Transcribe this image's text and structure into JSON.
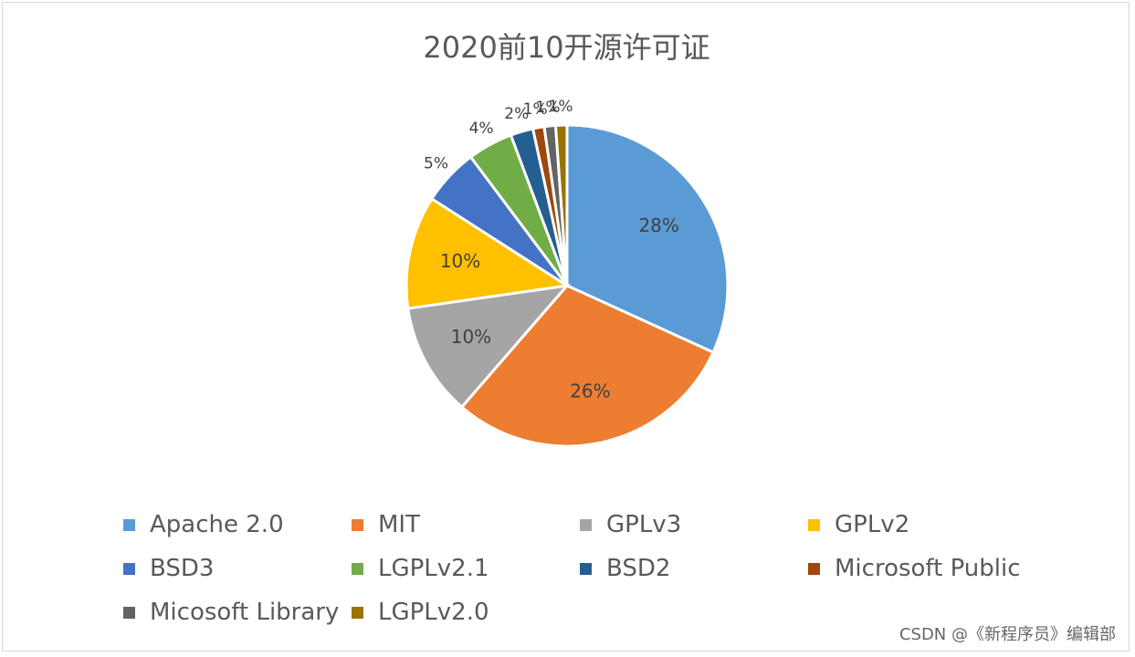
{
  "chart_data": {
    "type": "pie",
    "title": "2020前10开源许可证",
    "slices": [
      {
        "label": "Apache 2.0",
        "value": 28,
        "display": "28%",
        "color": "#5b9bd5"
      },
      {
        "label": "MIT",
        "value": 26,
        "display": "26%",
        "color": "#ed7d31"
      },
      {
        "label": "GPLv3",
        "value": 10,
        "display": "10%",
        "color": "#a5a5a5"
      },
      {
        "label": "GPLv2",
        "value": 10,
        "display": "10%",
        "color": "#ffc000"
      },
      {
        "label": "BSD3",
        "value": 5,
        "display": "5%",
        "color": "#4472c4"
      },
      {
        "label": "LGPLv2.1",
        "value": 4,
        "display": "4%",
        "color": "#70ad47"
      },
      {
        "label": "BSD2",
        "value": 2,
        "display": "2%",
        "color": "#255e91"
      },
      {
        "label": "Microsoft Public",
        "value": 1,
        "display": "1%",
        "color": "#9e480e"
      },
      {
        "label": "Micosoft Library",
        "value": 1,
        "display": "1%",
        "color": "#636363"
      },
      {
        "label": "LGPLv2.0",
        "value": 1,
        "display": "1%",
        "color": "#997300"
      }
    ],
    "legend_position": "bottom"
  },
  "watermark": "CSDN @《新程序员》编辑部"
}
